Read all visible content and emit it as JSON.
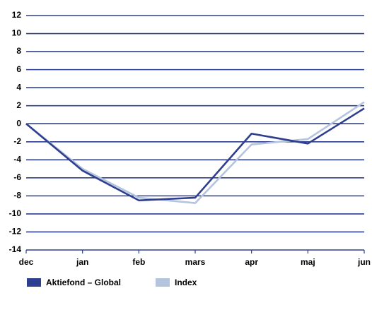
{
  "chart_data": {
    "type": "line",
    "categories": [
      "dec",
      "jan",
      "feb",
      "mars",
      "apr",
      "maj",
      "jun"
    ],
    "series": [
      {
        "name": "Aktiefond – Global",
        "color": "#2e3f8f",
        "values": [
          0,
          -5.2,
          -8.5,
          -8.2,
          -1.1,
          -2.2,
          1.7
        ]
      },
      {
        "name": "Index",
        "color": "#b4c3de",
        "values": [
          0,
          -5.0,
          -8.2,
          -8.8,
          -2.3,
          -1.7,
          2.4
        ]
      }
    ],
    "ylim": [
      -14,
      12
    ],
    "yticks": [
      -14,
      -12,
      -10,
      -8,
      -6,
      -4,
      -2,
      0,
      2,
      4,
      6,
      8,
      10,
      12
    ],
    "grid": true,
    "grid_color": "#2e3f8f",
    "legend": "bottom"
  }
}
